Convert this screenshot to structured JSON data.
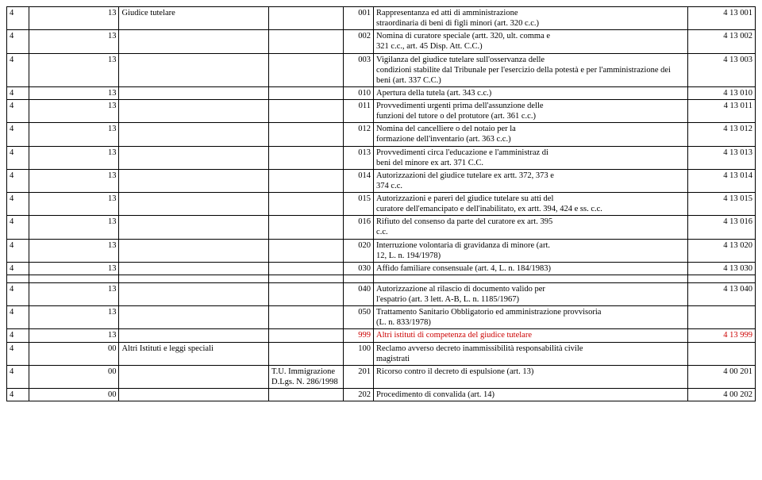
{
  "colors": {
    "text": "#000000",
    "accent": "#cc0000",
    "border": "#000000",
    "background": "#ffffff"
  },
  "rows": [
    {
      "c1": "4",
      "c2": "13",
      "c3": "Giudice tutelare",
      "c4": "",
      "c5": "001",
      "c6a": "Rappresentanza ed atti di amministrazione",
      "c6b": "straordinaria di beni di figli minori (art. 320 c.c.)",
      "c7": "4 13 001"
    },
    {
      "c1": "4",
      "c2": "13",
      "c3": "",
      "c4": "",
      "c5": "002",
      "c6a": "Nomina di curatore speciale (artt. 320, ult. comma e",
      "c6b": "321 c.c., art. 45 Disp. Att. C.C.)",
      "c7": "4 13 002"
    },
    {
      "c1": "4",
      "c2": "13",
      "c3": "",
      "c4": "",
      "c5": "003",
      "c6a": "Vigilanza del giudice tutelare sull'osservanza delle",
      "c6b": "condizioni stabilite dal Tribunale per l'esercizio della potestà e per l'amministrazione dei beni (art. 337 C.C.)",
      "c7": "4 13 003"
    },
    {
      "c1": "4",
      "c2": "13",
      "c3": "",
      "c4": "",
      "c5": "010",
      "c6a": "Apertura della tutela (art. 343 c.c.)",
      "c6b": "",
      "c7": "4 13 010"
    },
    {
      "c1": "4",
      "c2": "13",
      "c3": "",
      "c4": "",
      "c5": "011",
      "c6a": "Provvedimenti urgenti prima dell'assunzione delle",
      "c6b": "funzioni del tutore o del protutore (art. 361 c.c.)",
      "c7": "4 13 011"
    },
    {
      "c1": "4",
      "c2": "13",
      "c3": "",
      "c4": "",
      "c5": "012",
      "c6a": "Nomina del cancelliere o del notaio per la",
      "c6b": "formazione dell'inventario (art. 363 c.c.)",
      "c7": "4 13 012"
    },
    {
      "c1": "4",
      "c2": "13",
      "c3": "",
      "c4": "",
      "c5": "013",
      "c6a": "Provvedimenti circa l'educazione e l'amministraz di",
      "c6b": "beni del minore ex art. 371 C.C.",
      "c7": "4 13 013"
    },
    {
      "c1": "4",
      "c2": "13",
      "c3": "",
      "c4": "",
      "c5": "014",
      "c6a": "Autorizzazioni del giudice tutelare ex artt. 372, 373 e",
      "c6b": "374 c.c.",
      "c7": "4 13 014"
    },
    {
      "c1": "4",
      "c2": "13",
      "c3": "",
      "c4": "",
      "c5": "015",
      "c6a": "Autorizzazioni e pareri del giudice tutelare su atti del",
      "c6b": "curatore dell'emancipato e dell'inabilitato, ex artt. 394, 424 e ss. c.c.",
      "c7": "4 13 015"
    },
    {
      "c1": "4",
      "c2": "13",
      "c3": "",
      "c4": "",
      "c5": "016",
      "c6a": "Rifiuto del consenso da parte del curatore ex art. 395",
      "c6b": "c.c.",
      "c7": "4 13 016"
    },
    {
      "c1": "4",
      "c2": "13",
      "c3": "",
      "c4": "",
      "c5": "020",
      "c6a": "Interruzione volontaria di gravidanza di minore (art.",
      "c6b": "12, L. n. 194/1978)",
      "c7": "4 13 020"
    },
    {
      "c1": "4",
      "c2": "13",
      "c3": "",
      "c4": "",
      "c5": "030",
      "c6a": "Affido familiare consensuale (art. 4, L. n. 184/1983)",
      "c6b": "",
      "c7": "4 13 030"
    }
  ],
  "rows2": [
    {
      "c1": "4",
      "c2": "13",
      "c3": "",
      "c4": "",
      "c5": "040",
      "c6a": "Autorizzazione al rilascio di documento valido per",
      "c6b": "l'espatrio (art. 3 lett.  A-B, L. n. 1185/1967)",
      "c7": "4 13 040"
    },
    {
      "c1": "4",
      "c2": "13",
      "c3": "",
      "c4": "",
      "c5": "050",
      "c6a": "Trattamento Sanitario Obbligatorio ed amministrazione provvisoria",
      "c6b": "(L. n. 833/1978)",
      "c7": ""
    },
    {
      "c1": "4",
      "c2": "13",
      "c3": "",
      "c4": "",
      "c5": "999",
      "c6a": "Altri istituti di competenza del giudice tutelare",
      "c6b": "",
      "c7": "4 13 999",
      "red": true
    },
    {
      "c1": "4",
      "c2": "00",
      "c3": "Altri  Istituti e leggi speciali",
      "c4": "",
      "c5": "100",
      "c6a": "Reclamo avverso decreto inammissibilità responsabilità civile",
      "c6b": "magistrati",
      "c7": ""
    },
    {
      "c1": "4",
      "c2": "00",
      "c3": "",
      "c4": "T.U. Immigrazione D.Lgs. N. 286/1998",
      "c5": "201",
      "c6a": "Ricorso contro il decreto di espulsione (art. 13)",
      "c6b": "",
      "c7": "4 00 201"
    },
    {
      "c1": "4",
      "c2": "00",
      "c3": "",
      "c4": "",
      "c5": "202",
      "c6a": "Procedimento di convalida (art. 14)",
      "c6b": "",
      "c7": "4 00 202"
    }
  ]
}
